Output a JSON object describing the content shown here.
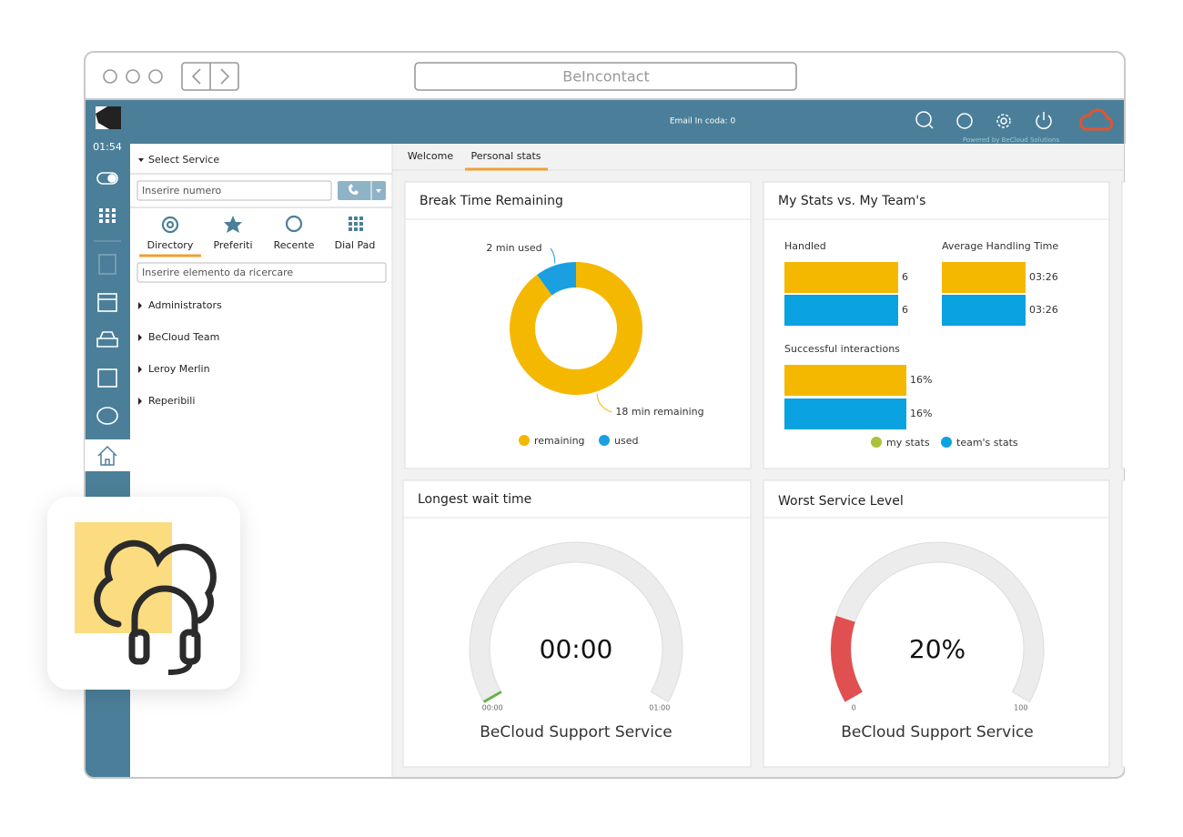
{
  "browser": {
    "address": "BeIncontact"
  },
  "topbar": {
    "status": "Email In coda: 0",
    "powered": "Powered by BeCloud Solutions"
  },
  "sidebar": {
    "time": "01:54"
  },
  "panel": {
    "select_service": "Select Service",
    "number_placeholder": "Inserire numero",
    "tabs": [
      "Directory",
      "Preferiti",
      "Recente",
      "Dial Pad"
    ],
    "search_placeholder": "Inserire elemento da ricercare",
    "groups": [
      "Administrators",
      "BeCloud Team",
      "Leroy Merlin",
      "Reperibili"
    ]
  },
  "content_tabs": [
    "Welcome",
    "Personal stats"
  ],
  "chart_data": [
    {
      "type": "pie",
      "title": "Break Time Remaining",
      "donut": true,
      "categories": [
        "remaining",
        "used"
      ],
      "values": [
        18,
        2
      ],
      "value_labels": [
        "18 min remaining",
        "2 min used"
      ],
      "colors": [
        "#f5b800",
        "#1a9fe0"
      ]
    },
    {
      "type": "bar",
      "title": "My Stats vs. My Team's",
      "series": [
        {
          "name": "my stats",
          "color": "#f5b800"
        },
        {
          "name": "team's stats",
          "color": "#0aa2e0"
        }
      ],
      "panels": [
        {
          "label": "Handled",
          "values": [
            6,
            6
          ]
        },
        {
          "label": "Average Handling Time",
          "values": [
            206,
            206
          ],
          "value_labels": [
            "03:26",
            "03:26"
          ]
        },
        {
          "label": "Successful interactions",
          "values": [
            16,
            16
          ],
          "value_labels": [
            "16%",
            "16%"
          ]
        }
      ]
    },
    {
      "type": "gauge",
      "title": "Longest wait time",
      "value": 0,
      "value_label": "00:00",
      "ylim": [
        0,
        60
      ],
      "yticks": [
        {
          "value": 0,
          "label": "00:00"
        },
        {
          "value": 60,
          "label": "01:00"
        }
      ],
      "subtitle": "BeCloud Support Service",
      "color": "#6ab04c"
    },
    {
      "type": "gauge",
      "title": "Worst Service Level",
      "value": 20,
      "value_label": "20%",
      "ylim": [
        0,
        100
      ],
      "yticks": [
        0,
        100
      ],
      "subtitle": "BeCloud Support Service",
      "color": "#e05050"
    }
  ]
}
